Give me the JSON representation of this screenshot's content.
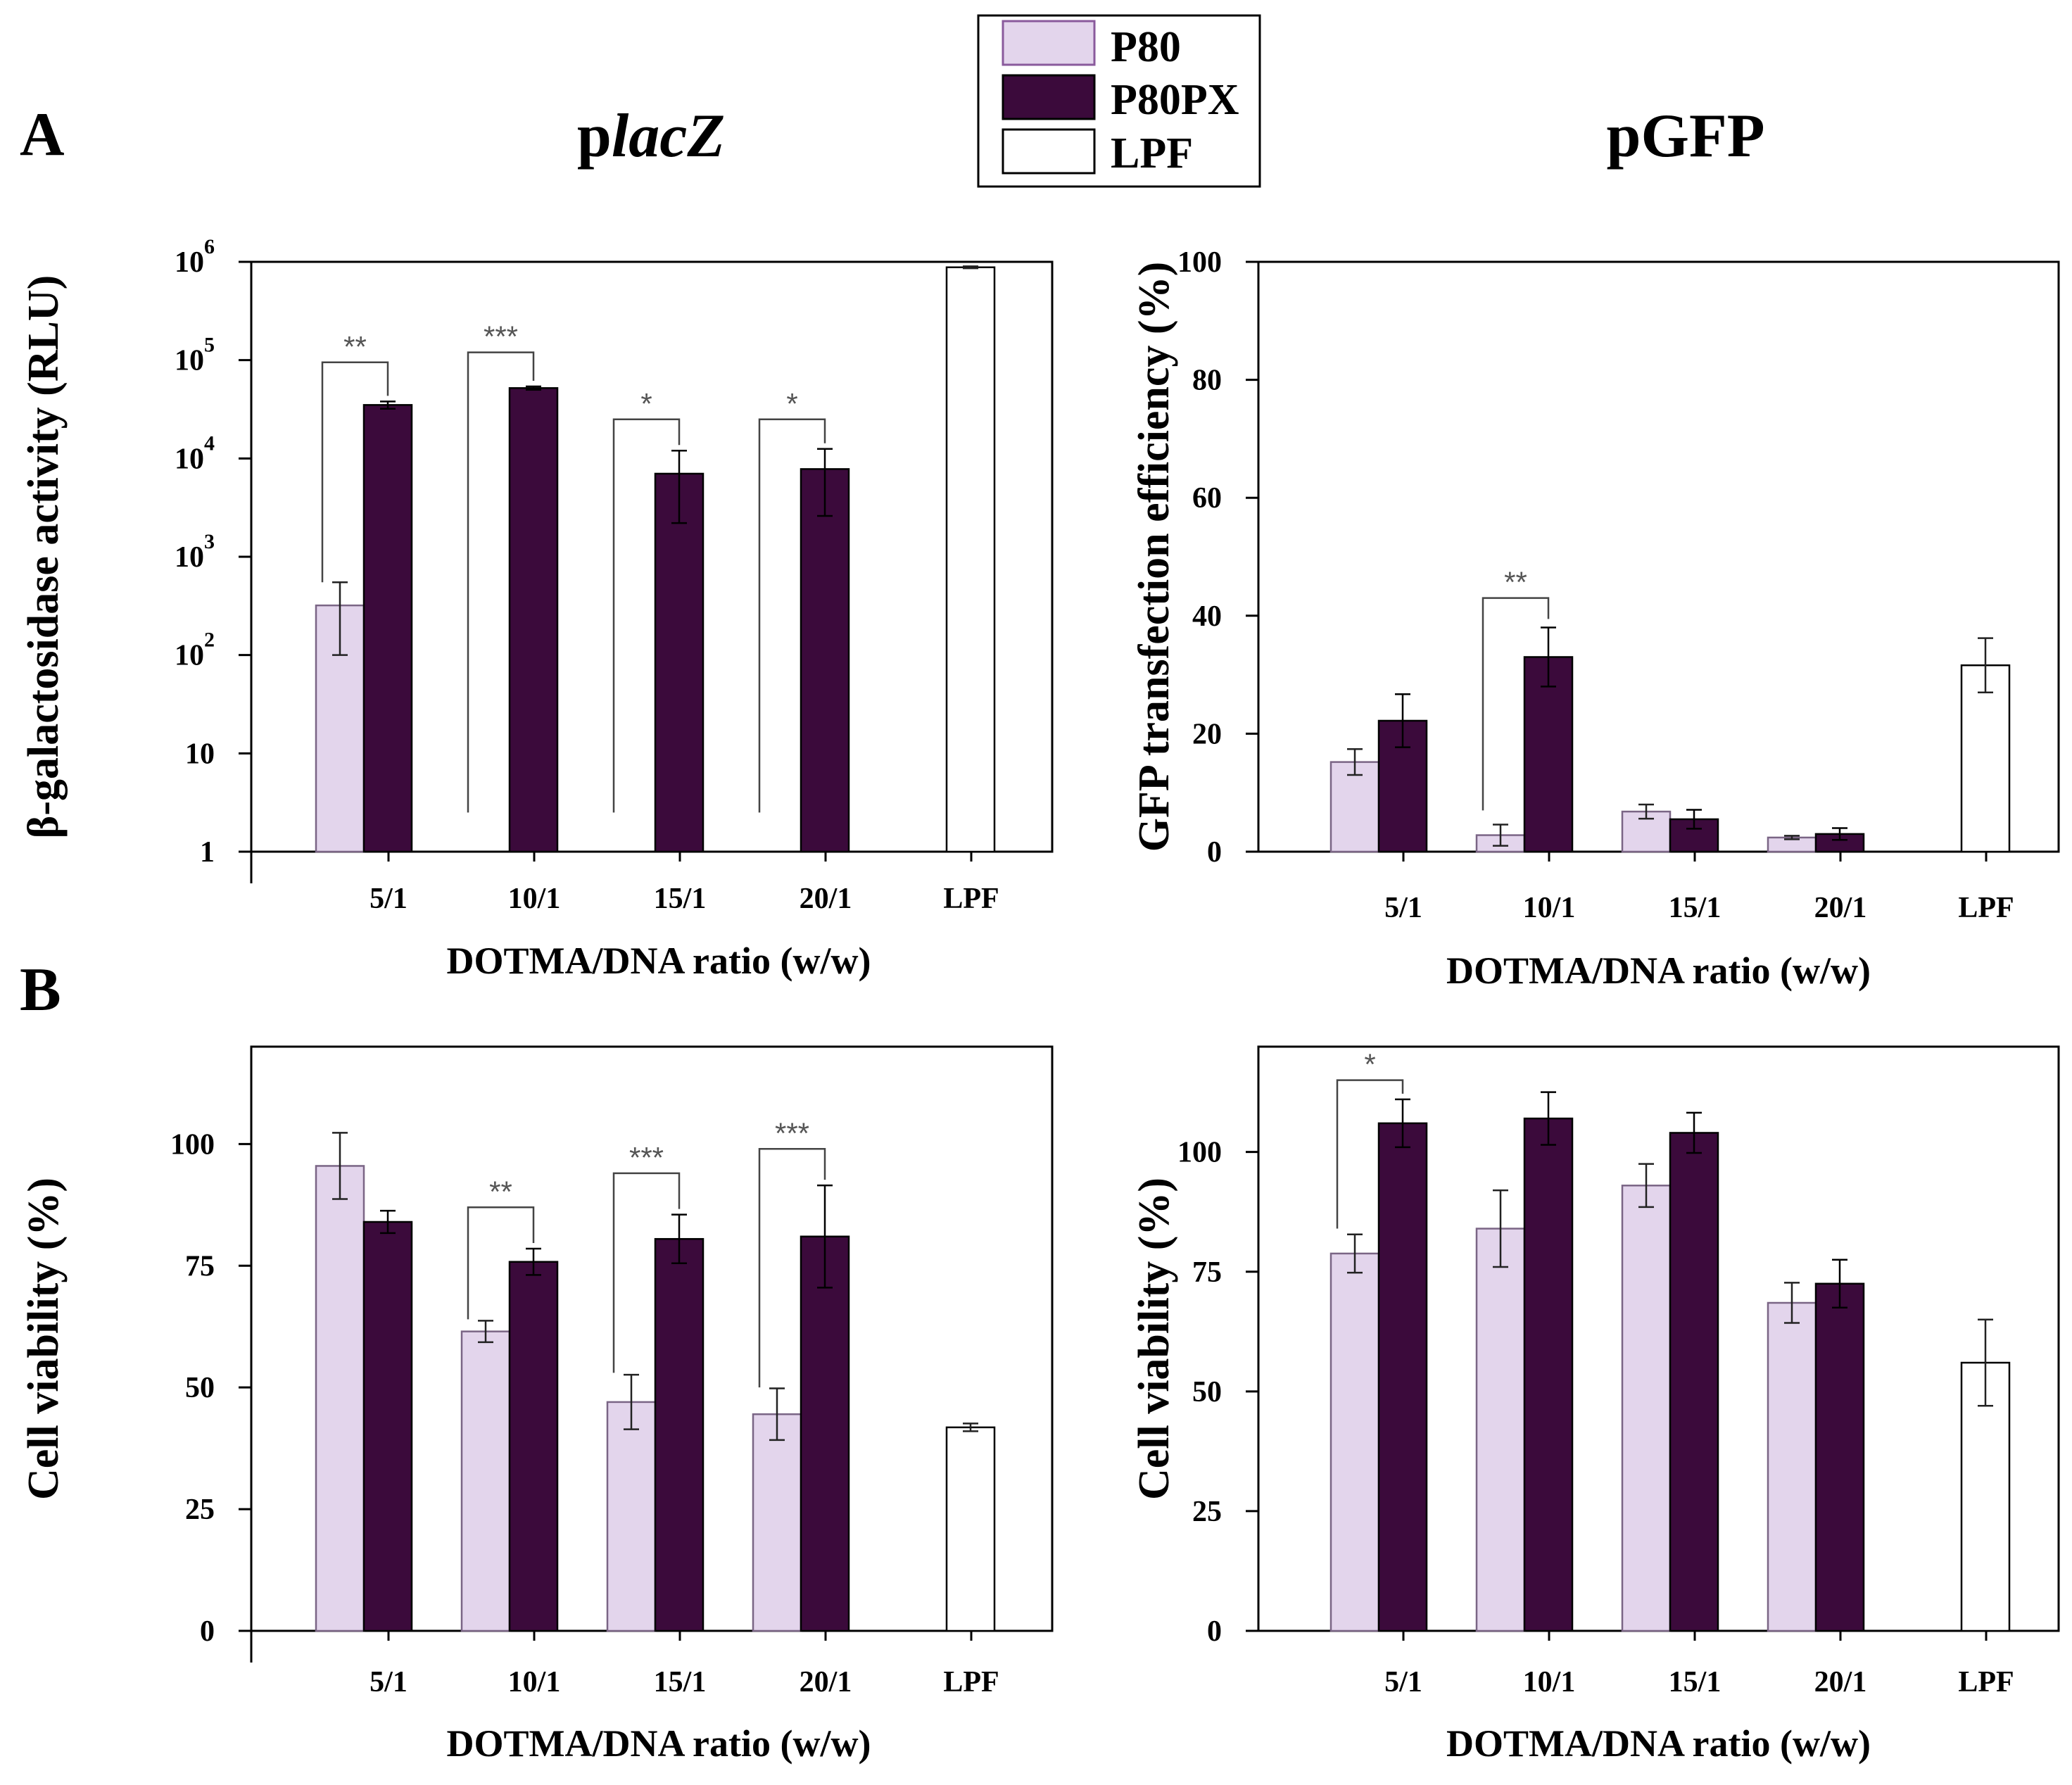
{
  "figure": {
    "panel_a": "A",
    "panel_b": "B",
    "title_left_prefix": "p",
    "title_left_italic": "lacZ",
    "title_right": "pGFP"
  },
  "legend": [
    {
      "name": "P80",
      "color": "#e3d5ec"
    },
    {
      "name": "P80PX",
      "color": "#3b0a3b"
    },
    {
      "name": "LPF",
      "color": "#ffffff"
    }
  ],
  "colors": {
    "P80": "#e3d5ec",
    "P80PX": "#3b0a3b",
    "LPF": "#ffffff"
  },
  "chart_data": [
    {
      "id": "lacz_activity",
      "type": "bar",
      "yscale": "log",
      "ylabel": "β-galactosidase activity (RLU)",
      "xlabel": "DOTMA/DNA ratio (w/w)",
      "categories": [
        "5/1",
        "10/1",
        "15/1",
        "20/1",
        "LPF"
      ],
      "ylim": [
        1,
        1000000
      ],
      "yticks": [
        {
          "v": 1,
          "label": "1"
        },
        {
          "v": 10,
          "label": "10"
        },
        {
          "v": 100,
          "label": "10",
          "exp": "2"
        },
        {
          "v": 1000,
          "label": "10",
          "exp": "3"
        },
        {
          "v": 10000,
          "label": "10",
          "exp": "4"
        },
        {
          "v": 100000,
          "label": "10",
          "exp": "5"
        },
        {
          "v": 1000000,
          "label": "10",
          "exp": "6"
        }
      ],
      "series": [
        {
          "name": "P80",
          "values": [
            320,
            null,
            null,
            null,
            null
          ],
          "err_low": [
            100,
            null,
            null,
            null,
            null
          ],
          "err_high": [
            550,
            null,
            null,
            null,
            null
          ]
        },
        {
          "name": "P80PX",
          "values": [
            35000,
            52000,
            7000,
            7800,
            null
          ],
          "err_low": [
            32000,
            50000,
            2200,
            2600,
            null
          ],
          "err_high": [
            38000,
            54000,
            12000,
            12500,
            null
          ]
        },
        {
          "name": "LPF",
          "values": [
            null,
            null,
            null,
            null,
            880000
          ],
          "err_low": [
            null,
            null,
            null,
            null,
            860000
          ],
          "err_high": [
            null,
            null,
            null,
            null,
            900000
          ]
        }
      ],
      "significance": [
        {
          "cat": 0,
          "label": "**",
          "left_v": 550,
          "right_v": 38000,
          "top_v": 95000
        },
        {
          "cat": 1,
          "label": "***",
          "left_v": 2.5,
          "right_v": 54000,
          "top_v": 120000
        },
        {
          "cat": 2,
          "label": "*",
          "left_v": 2.5,
          "right_v": 12000,
          "top_v": 25000
        },
        {
          "cat": 3,
          "label": "*",
          "left_v": 2.5,
          "right_v": 12500,
          "top_v": 25000
        }
      ]
    },
    {
      "id": "gfp_transfection",
      "type": "bar",
      "ylabel": "GFP transfection efficiency (%)",
      "xlabel": "DOTMA/DNA ratio (w/w)",
      "categories": [
        "5/1",
        "10/1",
        "15/1",
        "20/1",
        "LPF"
      ],
      "ylim": [
        0,
        100
      ],
      "yticks": [
        {
          "v": 0,
          "label": "0"
        },
        {
          "v": 20,
          "label": "20"
        },
        {
          "v": 40,
          "label": "40"
        },
        {
          "v": 60,
          "label": "60"
        },
        {
          "v": 80,
          "label": "80"
        },
        {
          "v": 100,
          "label": "100"
        }
      ],
      "series": [
        {
          "name": "P80",
          "values": [
            15.2,
            2.8,
            6.8,
            2.4,
            null
          ],
          "err": [
            2.2,
            1.8,
            1.2,
            0.3,
            null
          ]
        },
        {
          "name": "P80PX",
          "values": [
            22.2,
            33.0,
            5.5,
            3.0,
            null
          ],
          "err": [
            4.5,
            5.0,
            1.6,
            1.0,
            null
          ]
        },
        {
          "name": "LPF",
          "values": [
            null,
            null,
            null,
            null,
            31.6
          ],
          "err": [
            null,
            null,
            null,
            null,
            4.6
          ]
        }
      ],
      "significance": [
        {
          "cat": 1,
          "label": "**",
          "left_v": 7,
          "right_v": 38.5,
          "top_v": 43
        }
      ]
    },
    {
      "id": "viability_lacz",
      "type": "bar",
      "ylabel": "Cell viability (%)",
      "xlabel": "DOTMA/DNA ratio (w/w)",
      "categories": [
        "5/1",
        "10/1",
        "15/1",
        "20/1",
        "LPF"
      ],
      "ylim": [
        0,
        120
      ],
      "yticks": [
        {
          "v": 0,
          "label": "0"
        },
        {
          "v": 25,
          "label": "25"
        },
        {
          "v": 50,
          "label": "50"
        },
        {
          "v": 75,
          "label": "75"
        },
        {
          "v": 100,
          "label": "100"
        }
      ],
      "series": [
        {
          "name": "P80",
          "values": [
            95.5,
            61.5,
            47.0,
            44.5,
            null
          ],
          "err": [
            6.8,
            2.2,
            5.6,
            5.3,
            null
          ]
        },
        {
          "name": "P80PX",
          "values": [
            84.0,
            75.8,
            80.5,
            81.0,
            null
          ],
          "err": [
            2.3,
            2.7,
            5.0,
            10.5,
            null
          ]
        },
        {
          "name": "LPF",
          "values": [
            null,
            null,
            null,
            null,
            41.8
          ],
          "err": [
            null,
            null,
            null,
            null,
            0.8
          ]
        }
      ],
      "significance": [
        {
          "cat": 1,
          "label": "**",
          "left_v": 64,
          "right_v": 78.5,
          "top_v": 87
        },
        {
          "cat": 2,
          "label": "***",
          "left_v": 53,
          "right_v": 85.5,
          "top_v": 94
        },
        {
          "cat": 3,
          "label": "***",
          "left_v": 50,
          "right_v": 91.5,
          "top_v": 99
        }
      ]
    },
    {
      "id": "viability_gfp",
      "type": "bar",
      "ylabel": "Cell viability (%)",
      "xlabel": "DOTMA/DNA ratio (w/w)",
      "categories": [
        "5/1",
        "10/1",
        "15/1",
        "20/1",
        "LPF"
      ],
      "ylim": [
        0,
        122
      ],
      "yticks": [
        {
          "v": 0,
          "label": "0"
        },
        {
          "v": 25,
          "label": "25"
        },
        {
          "v": 50,
          "label": "50"
        },
        {
          "v": 75,
          "label": "75"
        },
        {
          "v": 100,
          "label": "100"
        }
      ],
      "series": [
        {
          "name": "P80",
          "values": [
            78.8,
            84.0,
            93.0,
            68.5,
            null
          ],
          "err": [
            4.0,
            8.0,
            4.5,
            4.2,
            null
          ]
        },
        {
          "name": "P80PX",
          "values": [
            106.0,
            107.0,
            104.0,
            72.5,
            null
          ],
          "err": [
            5.0,
            5.5,
            4.2,
            5.0,
            null
          ]
        },
        {
          "name": "LPF",
          "values": [
            null,
            null,
            null,
            null,
            56.0
          ],
          "err": [
            null,
            null,
            null,
            null,
            9.0
          ]
        }
      ],
      "significance": [
        {
          "cat": 0,
          "label": "*",
          "left_v": 84,
          "right_v": 111,
          "top_v": 115
        }
      ]
    }
  ]
}
